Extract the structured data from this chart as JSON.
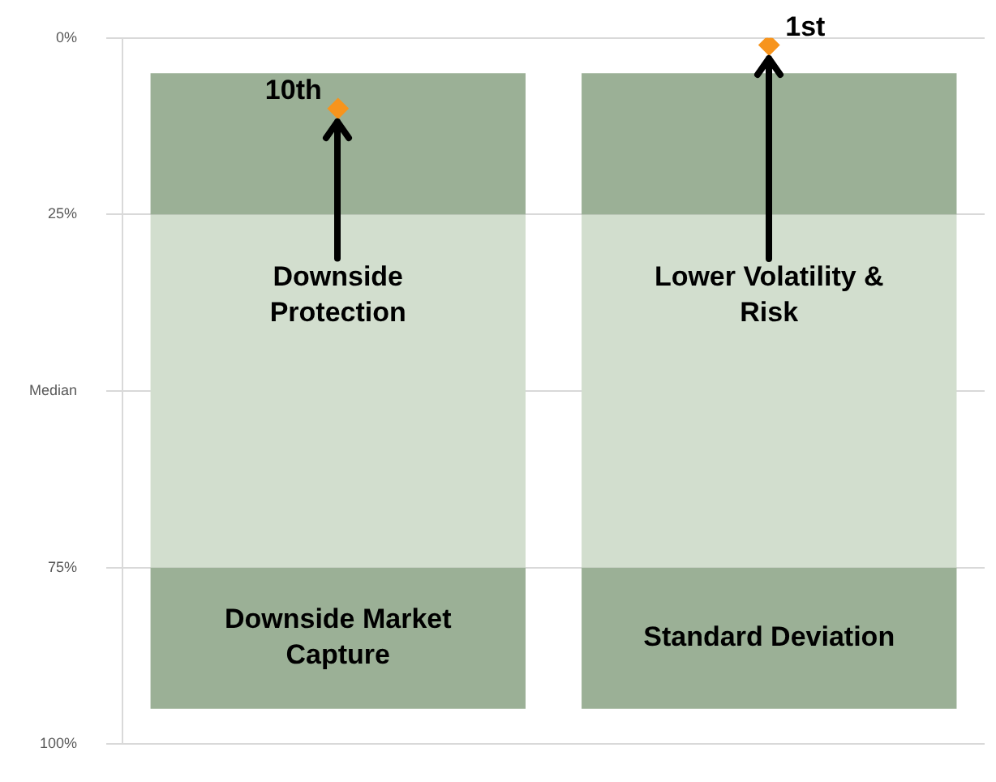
{
  "chart_data": {
    "type": "bar",
    "categories": [
      "Downside Market Capture",
      "Standard Deviation"
    ],
    "series": [
      {
        "color": "#9bb096",
        "base": [
          5,
          5
        ],
        "values": [
          20,
          20
        ]
      },
      {
        "color": "#d2dece",
        "base": [
          25,
          25
        ],
        "values": [
          25,
          25
        ]
      },
      {
        "color": "#d2dece",
        "base": [
          50,
          50
        ],
        "values": [
          25,
          25
        ]
      },
      {
        "color": "#9bb096",
        "base": [
          75,
          75
        ],
        "values": [
          20,
          20
        ]
      },
      {
        "type": "scatter",
        "color": "#f7941d",
        "x": [
          "Downside Market Capture",
          "Standard Deviation"
        ],
        "values": [
          10,
          1
        ],
        "value_labels": [
          "10th",
          "1st"
        ]
      }
    ],
    "marker": "diamond",
    "ylim": [
      100,
      0
    ],
    "yticks": [
      {
        "value": 0,
        "label": "0%"
      },
      {
        "value": 25,
        "label": "25%"
      },
      {
        "value": 50,
        "label": "Median"
      },
      {
        "value": 75,
        "label": "75%"
      },
      {
        "value": 100,
        "label": "100%"
      }
    ],
    "grid": "y",
    "legend": false,
    "annotations": [
      {
        "text": "Downside Protection",
        "x": "Downside Market Capture",
        "y": 10
      },
      {
        "text": "Lower Volatility & Risk",
        "x": "Standard Deviation",
        "y": 1
      }
    ]
  }
}
